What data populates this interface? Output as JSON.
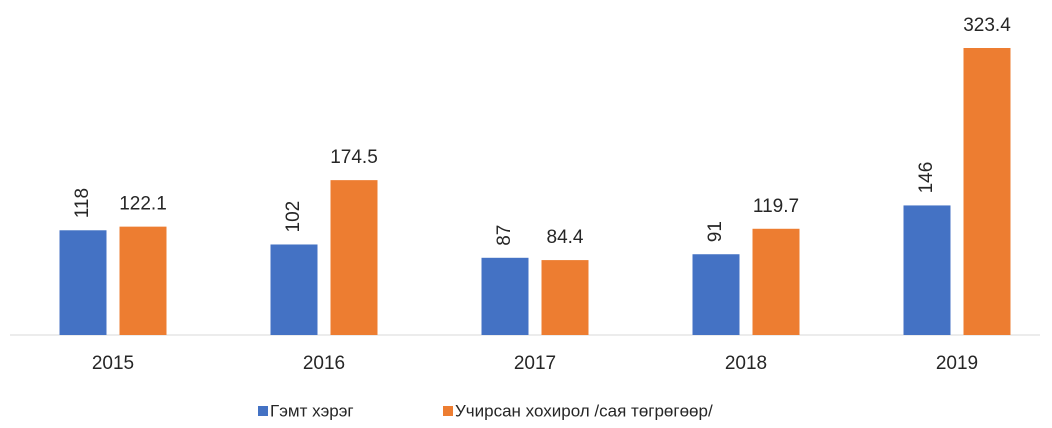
{
  "chart_data": {
    "type": "bar",
    "categories": [
      "2015",
      "2016",
      "2017",
      "2018",
      "2019"
    ],
    "series": [
      {
        "name": "Гэмт хэрэг",
        "color": "#4472c4",
        "values": [
          118,
          102,
          87,
          91,
          146
        ]
      },
      {
        "name": "Учирсан хохирол /сая төгрөгөөр/",
        "color": "#ed7d31",
        "values": [
          122.1,
          174.5,
          84.4,
          119.7,
          323.4
        ]
      }
    ]
  }
}
